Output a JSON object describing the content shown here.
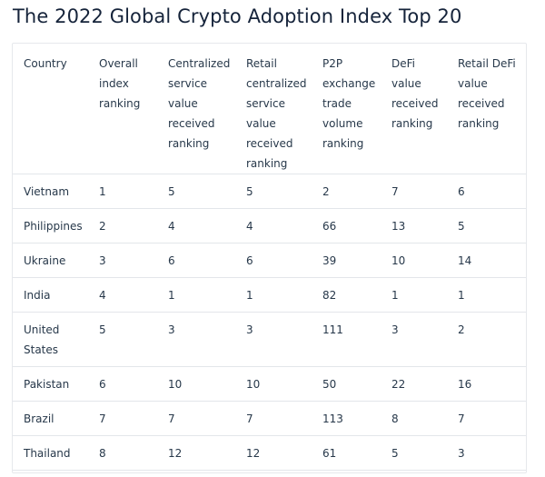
{
  "page": {
    "title": "The 2022 Global Crypto Adoption Index Top 20"
  },
  "table": {
    "headers": [
      [
        "Country"
      ],
      [
        "Overall",
        "index",
        "ranking"
      ],
      [
        "Centralized",
        "service",
        "value",
        "received",
        "ranking"
      ],
      [
        "Retail",
        "centralized",
        "service",
        "value",
        "received",
        "ranking"
      ],
      [
        "P2P",
        "exchange",
        "trade",
        "volume",
        "ranking"
      ],
      [
        "DeFi",
        "value",
        "received",
        "ranking"
      ],
      [
        "Retail DeFi",
        "value",
        "received",
        "ranking"
      ]
    ],
    "rows": [
      [
        [
          "Vietnam"
        ],
        "1",
        "5",
        "5",
        "2",
        "7",
        "6"
      ],
      [
        [
          "Philippines"
        ],
        "2",
        "4",
        "4",
        "66",
        "13",
        "5"
      ],
      [
        [
          "Ukraine"
        ],
        "3",
        "6",
        "6",
        "39",
        "10",
        "14"
      ],
      [
        [
          "India"
        ],
        "4",
        "1",
        "1",
        "82",
        "1",
        "1"
      ],
      [
        [
          "United",
          "States"
        ],
        "5",
        "3",
        "3",
        "111",
        "3",
        "2"
      ],
      [
        [
          "Pakistan"
        ],
        "6",
        "10",
        "10",
        "50",
        "22",
        "16"
      ],
      [
        [
          "Brazil"
        ],
        "7",
        "7",
        "7",
        "113",
        "8",
        "7"
      ],
      [
        [
          "Thailand"
        ],
        "8",
        "12",
        "12",
        "61",
        "5",
        "3"
      ]
    ]
  }
}
